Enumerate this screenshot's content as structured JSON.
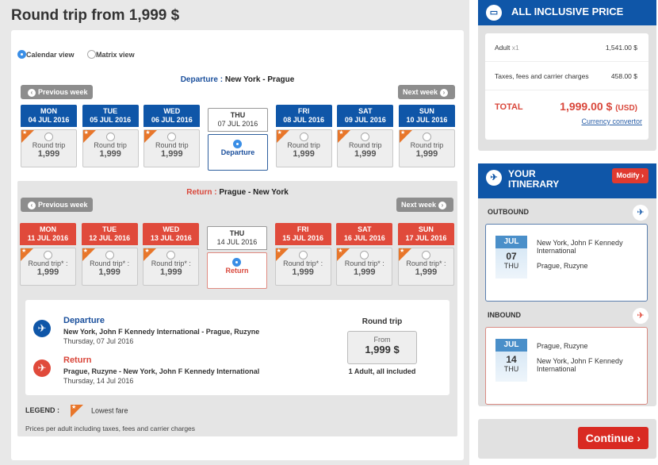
{
  "title": "Round trip from 1,999 $",
  "views": {
    "calendar": "Calendar view",
    "matrix": "Matrix view",
    "selected": "calendar"
  },
  "departure": {
    "label": "Departure :",
    "route": "New York - Prague",
    "prev": "Previous week",
    "next": "Next week",
    "selected_label": "Departure",
    "days": [
      {
        "dow": "MON",
        "date": "04 JUL 2016",
        "fare_label": "Round trip",
        "price": "1,999",
        "lowest": true
      },
      {
        "dow": "TUE",
        "date": "05 JUL 2016",
        "fare_label": "Round trip",
        "price": "1,999",
        "lowest": true
      },
      {
        "dow": "WED",
        "date": "06 JUL 2016",
        "fare_label": "Round trip",
        "price": "1,999",
        "lowest": true
      },
      {
        "dow": "THU",
        "date": "07 JUL 2016",
        "selected": true
      },
      {
        "dow": "FRI",
        "date": "08 JUL 2016",
        "fare_label": "Round trip",
        "price": "1,999",
        "lowest": true
      },
      {
        "dow": "SAT",
        "date": "09 JUL 2016",
        "fare_label": "Round trip",
        "price": "1,999",
        "lowest": true
      },
      {
        "dow": "SUN",
        "date": "10 JUL 2016",
        "fare_label": "Round trip",
        "price": "1,999",
        "lowest": true
      }
    ]
  },
  "return": {
    "label": "Return :",
    "route": "Prague - New York",
    "prev": "Previous week",
    "next": "Next week",
    "selected_label": "Return",
    "days": [
      {
        "dow": "MON",
        "date": "11 JUL 2016",
        "fare_label": "Round trip* :",
        "price": "1,999",
        "lowest": true
      },
      {
        "dow": "TUE",
        "date": "12 JUL 2016",
        "fare_label": "Round trip* :",
        "price": "1,999",
        "lowest": true
      },
      {
        "dow": "WED",
        "date": "13 JUL 2016",
        "fare_label": "Round trip* :",
        "price": "1,999",
        "lowest": true
      },
      {
        "dow": "THU",
        "date": "14 JUL 2016",
        "selected": true
      },
      {
        "dow": "FRI",
        "date": "15 JUL 2016",
        "fare_label": "Round trip* :",
        "price": "1,999",
        "lowest": true
      },
      {
        "dow": "SAT",
        "date": "16 JUL 2016",
        "fare_label": "Round trip* :",
        "price": "1,999",
        "lowest": true
      },
      {
        "dow": "SUN",
        "date": "17 JUL 2016",
        "fare_label": "Round trip* :",
        "price": "1,999",
        "lowest": true
      }
    ]
  },
  "summary": {
    "departure": {
      "title": "Departure",
      "route": "New York, John F Kennedy International - Prague, Ruzyne",
      "date": "Thursday, 07 Jul 2016"
    },
    "return": {
      "title": "Return",
      "route": "Prague, Ruzyne - New York, John F Kennedy International",
      "date": "Thursday, 14 Jul 2016"
    },
    "round_trip": "Round trip",
    "from": "From",
    "price": "1,999 $",
    "passengers": "1 Adult, all included"
  },
  "legend": {
    "label": "LEGEND :",
    "lowest_fare": "Lowest fare"
  },
  "note": "Prices per adult including taxes, fees and carrier charges",
  "price_panel": {
    "title": "ALL INCLUSIVE PRICE",
    "adult_label": "Adult",
    "adult_count": "x1",
    "adult_price": "1,541.00 $",
    "taxes_label": "Taxes, fees and carrier charges",
    "taxes_price": "458.00 $",
    "total_label": "TOTAL",
    "total": "1,999.00 $",
    "currency": "(USD)",
    "currency_link": "Currency convertor"
  },
  "itinerary": {
    "title_line1": "YOUR",
    "title_line2": "ITINERARY",
    "modify": "Modify",
    "outbound": {
      "label": "OUTBOUND",
      "month": "JUL",
      "day": "07",
      "dow": "THU",
      "from": "New York, John F Kennedy International",
      "to": "Prague, Ruzyne"
    },
    "inbound": {
      "label": "INBOUND",
      "month": "JUL",
      "day": "14",
      "dow": "THU",
      "from": "Prague, Ruzyne",
      "to": "New York, John F Kennedy International"
    }
  },
  "continue": "Continue",
  "colors": {
    "blue": "#0f56a8",
    "red": "#e04a3b",
    "lowest_fare": "#e8762a"
  }
}
